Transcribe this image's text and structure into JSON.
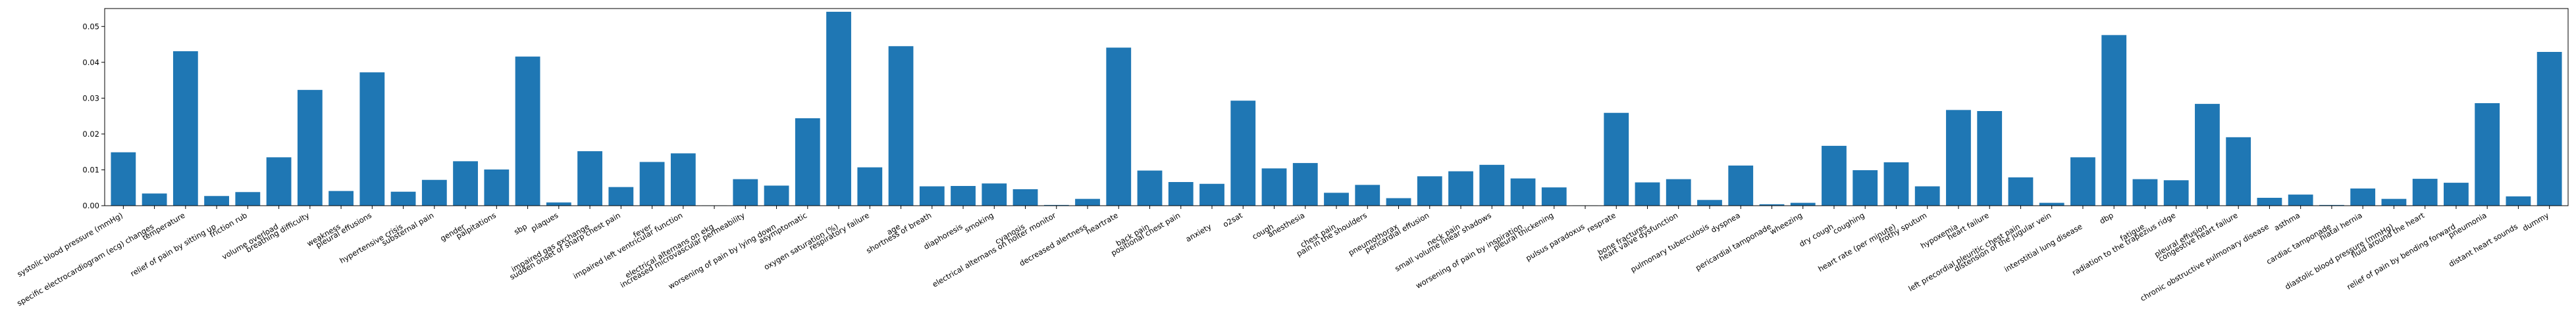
{
  "chart_data": {
    "type": "bar",
    "title": "",
    "xlabel": "",
    "ylabel": "",
    "ylim": [
      0,
      0.055
    ],
    "yticks": [
      0.0,
      0.01,
      0.02,
      0.03,
      0.04,
      0.05
    ],
    "ytick_labels": [
      "0.00",
      "0.01",
      "0.02",
      "0.03",
      "0.04",
      "0.05"
    ],
    "bar_color": "#1f77b4",
    "grid": false,
    "legend": "none",
    "categories": [
      "systolic blood pressure (mmHg)",
      "specific electrocardiogram (ecg) changes",
      "temperature",
      "relief of pain by sitting up",
      "friction rub",
      "volume overload",
      "breathing difficulty",
      "weakness",
      "pleural effusions",
      "hypertensive crisis",
      "substernal pain",
      "gender",
      "palpitations",
      "sbp",
      "plaques",
      "impaired gas exchange",
      "sudden onset of sharp chest pain",
      "fever",
      "impaired left ventricular function",
      "electrical alternans on ekg",
      "increased microvascular permeability",
      "worsening of pain by lying down",
      "asymptomatic",
      "oxygen saturation (%)",
      "respiratory failure",
      "age",
      "shortness of breath",
      "diaphoresis",
      "smoking",
      "cyanosis",
      "electrical alternans on holter monitor",
      "decreased alertness",
      "heartrate",
      "back pain",
      "positional chest pain",
      "anxiety",
      "o2sat",
      "cough",
      "anesthesia",
      "chest pain",
      "pain in the shoulders",
      "pneumothorax",
      "pericardial effusion",
      "neck pain",
      "small volume linear shadows",
      "worsening of pain by inspiration",
      "pleural thickening",
      "pulsus paradoxus",
      "resprate",
      "bone fractures",
      "heart valve dysfunction",
      "pulmonary tuberculosis",
      "dyspnea",
      "pericardial tamponade",
      "wheezing",
      "dry cough",
      "coughing",
      "heart rate (per minute)",
      "frothy sputum",
      "hypoxemia",
      "heart failure",
      "left precordial pleuritic chest pain",
      "distension of the jugular vein",
      "interstitial lung disease",
      "dbp",
      "fatigue",
      "radiation to the trapezius ridge",
      "pleural effusion",
      "congestive heart failure",
      "chronic obstructive pulmonary disease",
      "asthma",
      "cardiac tamponade",
      "hiatal hernia",
      "diastolic blood pressure (mmHg)",
      "fluid around the heart",
      "relief of pain by bending forward",
      "pneumonia",
      "distant heart sounds",
      "dummy"
    ],
    "values": [
      0.0149,
      0.0034,
      0.0431,
      0.0027,
      0.0038,
      0.0135,
      0.0323,
      0.0041,
      0.0372,
      0.0039,
      0.0072,
      0.0124,
      0.0101,
      0.0416,
      0.0009,
      0.0152,
      0.0052,
      0.0122,
      0.0146,
      0.0001,
      0.0074,
      0.0056,
      0.0244,
      0.0541,
      0.0107,
      0.0445,
      0.0054,
      0.0055,
      0.0062,
      0.0046,
      0.0002,
      0.0019,
      0.0441,
      0.0098,
      0.0066,
      0.0061,
      0.0293,
      0.0104,
      0.0119,
      0.0036,
      0.0058,
      0.0021,
      0.0082,
      0.0096,
      0.0114,
      0.0076,
      0.0051,
      0.0001,
      0.0259,
      0.0065,
      0.0074,
      0.0016,
      0.0112,
      0.0004,
      0.0008,
      0.0167,
      0.0099,
      0.0121,
      0.0054,
      0.0267,
      0.0264,
      0.0079,
      0.0008,
      0.0135,
      0.0476,
      0.0074,
      0.0071,
      0.0284,
      0.0191,
      0.0022,
      0.0031,
      0.0002,
      0.0048,
      0.0019,
      0.0075,
      0.0064,
      0.0286,
      0.0026,
      0.0429
    ]
  }
}
